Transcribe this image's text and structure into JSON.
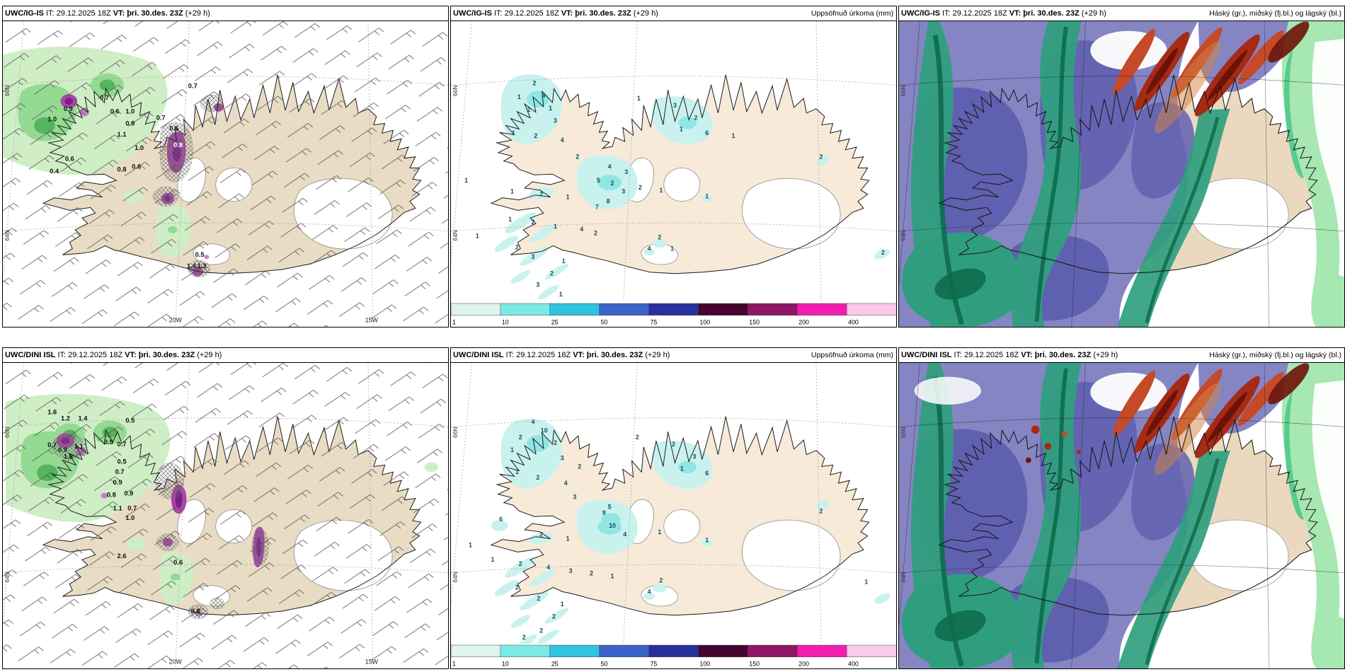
{
  "run": {
    "it_label": "IT:",
    "init_time": "29.12.2025 18Z",
    "vt_label": "VT:",
    "valid_time": "þri. 30.des. 23Z",
    "lead": "(+29 h)"
  },
  "rows": [
    {
      "model": "UWC/IG-IS"
    },
    {
      "model": "UWC/DINI ISL"
    }
  ],
  "panel_titles": {
    "precip": "Uppsöfnuð úrkoma (mm)",
    "cloud": "Háský (gr.), miðský (fj.bl.) og lágský (bl.)"
  },
  "colorbar": {
    "unit": "mm",
    "labels": [
      "1",
      "10",
      "25",
      "50",
      "75",
      "100",
      "150",
      "200",
      "400"
    ],
    "colors": [
      "#def5ef",
      "#7ce9e4",
      "#2fc3e0",
      "#3c63c9",
      "#28309b",
      "#45052e",
      "#8f1664",
      "#f21fae",
      "#f9c9ea"
    ]
  },
  "graticule": {
    "lon_labels": [
      "20W",
      "15W"
    ],
    "lat_labels": [
      "66N",
      "64N"
    ]
  },
  "palette": {
    "land_wind": "#e9dcc4",
    "land_precip": "#f7ead9",
    "land_cloud": "#ead9bf",
    "green_light": "#cfeec6",
    "green_mid": "#94da92",
    "green_dark": "#55b45e",
    "magenta_light": "#c97fc9",
    "magenta_mid": "#a844a8",
    "magenta_dark": "#7c1d88",
    "cyan_light": "#c9f2ef",
    "cyan_mid": "#8fe6e3",
    "cloud_blue": "#8585c4",
    "cloud_blue_dark": "#6060b0",
    "cloud_teal": "#2f9e7e",
    "cloud_green_dark": "#0e6b4c",
    "cloud_green_light": "#a6e7b2",
    "cloud_green_mid": "#57cd8d",
    "cloud_red": "#a52b15",
    "cloud_red_dark": "#6f1206",
    "cloud_red_light": "#c44a28",
    "cloud_orange": "#d58243",
    "barb": "#565656"
  },
  "map_values": {
    "wind_r1": [
      [
        273,
        96,
        "0.7"
      ],
      [
        146,
        113,
        "0.7"
      ],
      [
        94,
        129,
        "0.9"
      ],
      [
        161,
        133,
        "0.6"
      ],
      [
        183,
        133,
        "1.0"
      ],
      [
        71,
        144,
        "1.0"
      ],
      [
        227,
        142,
        "0.7"
      ],
      [
        183,
        150,
        "0.9"
      ],
      [
        246,
        157,
        "0.5"
      ],
      [
        171,
        166,
        "1.1"
      ],
      [
        196,
        185,
        "1.0"
      ],
      [
        96,
        201,
        "0.6"
      ],
      [
        171,
        216,
        "0.8"
      ],
      [
        192,
        212,
        "0.6"
      ],
      [
        74,
        219,
        "0.4"
      ],
      [
        283,
        339,
        "0.5"
      ],
      [
        271,
        355,
        "1.4"
      ],
      [
        286,
        355,
        "1.3"
      ],
      [
        252,
        181,
        "0.8",
        1
      ]
    ],
    "wind_r2": [
      [
        71,
        74,
        "1.6"
      ],
      [
        90,
        83,
        "1.2"
      ],
      [
        115,
        83,
        "1.4"
      ],
      [
        183,
        86,
        "0.5"
      ],
      [
        71,
        121,
        "0.7"
      ],
      [
        86,
        128,
        "0.9"
      ],
      [
        109,
        123,
        "1.1"
      ],
      [
        152,
        117,
        "0.5"
      ],
      [
        171,
        120,
        "0.7"
      ],
      [
        94,
        138,
        "1.0"
      ],
      [
        171,
        145,
        "0.5"
      ],
      [
        168,
        160,
        "0.7"
      ],
      [
        165,
        175,
        "0.9"
      ],
      [
        156,
        193,
        "0.8"
      ],
      [
        181,
        191,
        "0.9"
      ],
      [
        165,
        212,
        "1.1"
      ],
      [
        186,
        212,
        "0.7"
      ],
      [
        183,
        226,
        "1.0"
      ],
      [
        171,
        281,
        "2.6"
      ],
      [
        252,
        290,
        "0.6"
      ],
      [
        277,
        360,
        "0.8"
      ]
    ],
    "precip_r1": [
      [
        120,
        92,
        "2"
      ],
      [
        98,
        112,
        "1"
      ],
      [
        133,
        110,
        "4"
      ],
      [
        112,
        130,
        "2"
      ],
      [
        143,
        128,
        "1"
      ],
      [
        150,
        146,
        "3"
      ],
      [
        90,
        164,
        "1"
      ],
      [
        122,
        168,
        "2"
      ],
      [
        160,
        174,
        "4"
      ],
      [
        270,
        114,
        "1"
      ],
      [
        322,
        124,
        "3"
      ],
      [
        352,
        142,
        "2"
      ],
      [
        331,
        158,
        "1"
      ],
      [
        368,
        164,
        "6"
      ],
      [
        406,
        168,
        "1"
      ],
      [
        182,
        198,
        "2"
      ],
      [
        228,
        212,
        "4"
      ],
      [
        252,
        220,
        "3"
      ],
      [
        212,
        232,
        "5"
      ],
      [
        232,
        236,
        "2"
      ],
      [
        248,
        248,
        "3"
      ],
      [
        272,
        242,
        "2"
      ],
      [
        302,
        246,
        "1"
      ],
      [
        226,
        262,
        "8"
      ],
      [
        22,
        232,
        "1"
      ],
      [
        88,
        248,
        "1"
      ],
      [
        130,
        252,
        "2"
      ],
      [
        168,
        256,
        "1"
      ],
      [
        210,
        270,
        "7"
      ],
      [
        368,
        255,
        "1"
      ],
      [
        85,
        288,
        "1"
      ],
      [
        118,
        292,
        "2"
      ],
      [
        150,
        298,
        "1"
      ],
      [
        188,
        302,
        "4"
      ],
      [
        208,
        308,
        "2"
      ],
      [
        38,
        312,
        "1"
      ],
      [
        95,
        328,
        "2"
      ],
      [
        118,
        342,
        "3"
      ],
      [
        162,
        348,
        "1"
      ],
      [
        145,
        366,
        "2"
      ],
      [
        125,
        382,
        "3"
      ],
      [
        158,
        396,
        "1"
      ],
      [
        532,
        198,
        "2"
      ],
      [
        621,
        336,
        "2"
      ],
      [
        285,
        330,
        "4"
      ],
      [
        300,
        314,
        "2"
      ],
      [
        318,
        330,
        "1"
      ]
    ],
    "precip_r2": [
      [
        118,
        88,
        "4"
      ],
      [
        134,
        100,
        "10"
      ],
      [
        100,
        110,
        "2"
      ],
      [
        88,
        128,
        "1"
      ],
      [
        150,
        118,
        "2"
      ],
      [
        160,
        140,
        "3"
      ],
      [
        95,
        160,
        "1"
      ],
      [
        125,
        168,
        "2"
      ],
      [
        165,
        176,
        "4"
      ],
      [
        185,
        152,
        "2"
      ],
      [
        268,
        110,
        "2"
      ],
      [
        320,
        120,
        "2"
      ],
      [
        350,
        138,
        "3"
      ],
      [
        332,
        155,
        "1"
      ],
      [
        368,
        162,
        "6"
      ],
      [
        178,
        196,
        "3"
      ],
      [
        220,
        219,
        "9"
      ],
      [
        232,
        237,
        "10"
      ],
      [
        228,
        210,
        "5"
      ],
      [
        250,
        250,
        "4"
      ],
      [
        300,
        246,
        "1"
      ],
      [
        72,
        228,
        "6"
      ],
      [
        28,
        265,
        "1"
      ],
      [
        130,
        250,
        "2"
      ],
      [
        168,
        256,
        "1"
      ],
      [
        532,
        216,
        "2"
      ],
      [
        368,
        258,
        "1"
      ],
      [
        60,
        286,
        "1"
      ],
      [
        100,
        292,
        "2"
      ],
      [
        140,
        297,
        "4"
      ],
      [
        172,
        302,
        "3"
      ],
      [
        202,
        306,
        "2"
      ],
      [
        232,
        310,
        "1"
      ],
      [
        95,
        326,
        "2"
      ],
      [
        126,
        342,
        "2"
      ],
      [
        160,
        350,
        "1"
      ],
      [
        148,
        368,
        "2"
      ],
      [
        130,
        388,
        "2"
      ],
      [
        105,
        398,
        "2"
      ],
      [
        597,
        318,
        "1"
      ],
      [
        285,
        332,
        "4"
      ],
      [
        302,
        316,
        "2"
      ]
    ]
  }
}
